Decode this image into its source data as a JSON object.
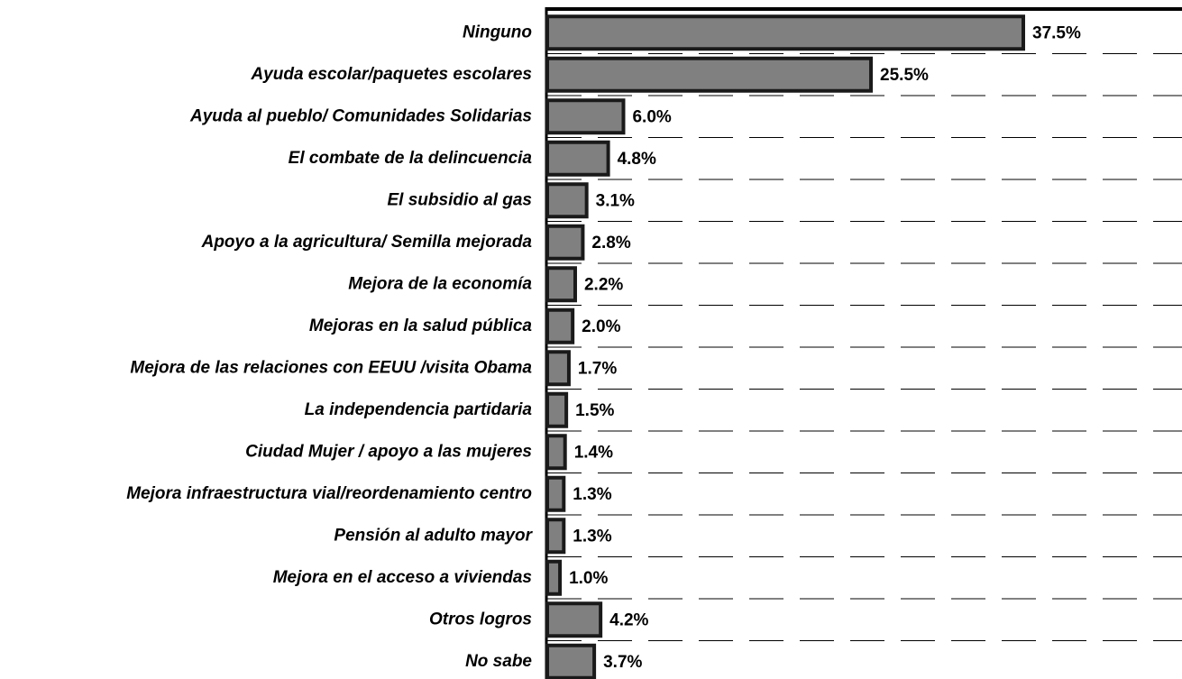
{
  "chart_data": {
    "type": "barh",
    "categories": [
      "Ninguno",
      "Ayuda escolar/paquetes escolares",
      "Ayuda al pueblo/ Comunidades Solidarias",
      "El combate de la delincuencia",
      "El subsidio al gas",
      "Apoyo a la agricultura/ Semilla mejorada",
      "Mejora de la economía",
      "Mejoras en la salud pública",
      "Mejora de las relaciones con EEUU /visita Obama",
      "La independencia partidaria",
      "Ciudad Mujer / apoyo a las mujeres",
      "Mejora infraestructura vial/reordenamiento centro",
      "Pensión al adulto mayor",
      "Mejora en el acceso a viviendas",
      "Otros logros",
      "No sabe"
    ],
    "values": [
      37.5,
      25.5,
      6.0,
      4.8,
      3.1,
      2.8,
      2.2,
      2.0,
      1.7,
      1.5,
      1.4,
      1.3,
      1.3,
      1.0,
      4.2,
      3.7
    ],
    "value_labels": [
      "37.5%",
      "25.5%",
      "6.0%",
      "4.8%",
      "3.1%",
      "2.8%",
      "2.2%",
      "2.0%",
      "1.7%",
      "1.5%",
      "1.4%",
      "1.3%",
      "1.3%",
      "1.0%",
      "4.2%",
      "3.7%"
    ],
    "color": "#808080",
    "xlim": [
      0,
      50
    ],
    "grid": true
  }
}
